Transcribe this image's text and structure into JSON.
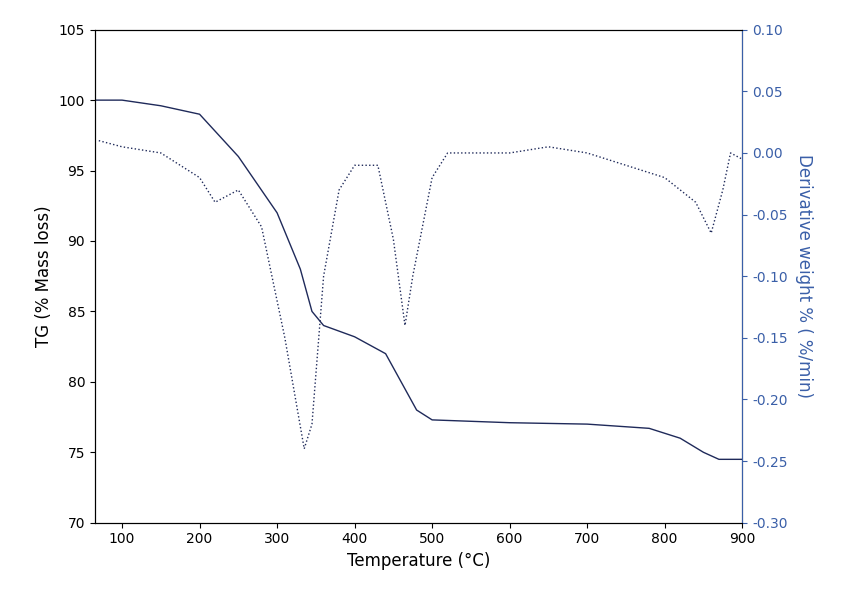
{
  "chart_data": {
    "type": "line",
    "x_label": "Temperature (°C)",
    "y_label": "TG (% Mass loss)",
    "y2_label": "Derivative weight % ( %/min)",
    "xlim": [
      65,
      900
    ],
    "xticks": [
      100,
      200,
      300,
      400,
      500,
      600,
      700,
      800,
      900
    ],
    "ylim": [
      70,
      105
    ],
    "yticks": [
      70,
      75,
      80,
      85,
      90,
      95,
      100,
      105
    ],
    "y2lim": [
      -0.3,
      0.1
    ],
    "y2ticks": [
      {
        "value": -0.3,
        "label": "-0.30"
      },
      {
        "value": -0.25,
        "label": "-0.25"
      },
      {
        "value": -0.2,
        "label": "-0.20"
      },
      {
        "value": -0.15,
        "label": "-0.15"
      },
      {
        "value": -0.1,
        "label": "-0.10"
      },
      {
        "value": -0.05,
        "label": "-0.05"
      },
      {
        "value": 0.0,
        "label": "0.00"
      },
      {
        "value": 0.05,
        "label": "0.05"
      },
      {
        "value": 0.1,
        "label": "0.10"
      }
    ],
    "grid": false,
    "series": [
      {
        "color": "#1f2a5a",
        "line_style": "solid",
        "x": [
          65,
          100,
          150,
          200,
          250,
          300,
          330,
          345,
          360,
          400,
          440,
          460,
          480,
          500,
          550,
          600,
          700,
          780,
          820,
          850,
          870,
          900
        ],
        "values": [
          100,
          100,
          99.6,
          99,
          96,
          92,
          88,
          85,
          84,
          83.2,
          82,
          80,
          78,
          77.3,
          77.2,
          77.1,
          77,
          76.7,
          76,
          75,
          74.5,
          74.5
        ]
      },
      {
        "color": "#1f2a5a",
        "line_style": "dotted",
        "axis": "y2",
        "x": [
          70,
          100,
          150,
          200,
          220,
          250,
          280,
          310,
          335,
          345,
          360,
          380,
          400,
          430,
          450,
          465,
          475,
          500,
          520,
          600,
          650,
          700,
          750,
          800,
          840,
          860,
          875,
          885,
          900
        ],
        "values": [
          0.01,
          0.005,
          0.0,
          -0.02,
          -0.04,
          -0.03,
          -0.06,
          -0.15,
          -0.24,
          -0.22,
          -0.1,
          -0.03,
          -0.01,
          -0.01,
          -0.07,
          -0.14,
          -0.1,
          -0.02,
          0.0,
          0.0,
          0.005,
          0.0,
          -0.01,
          -0.02,
          -0.04,
          -0.065,
          -0.03,
          0.0,
          -0.005
        ]
      }
    ]
  }
}
